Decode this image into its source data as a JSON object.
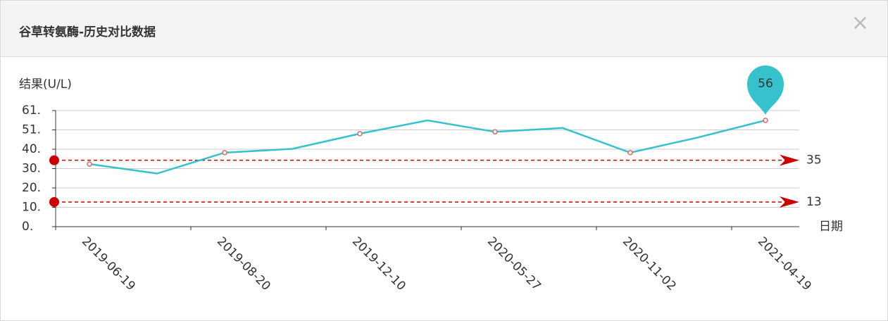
{
  "dialog": {
    "title": "谷草转氨酶-历史对比数据",
    "close": "×"
  },
  "chart_data": {
    "type": "line",
    "y_label": "结果(U/L)",
    "x_label": "日期",
    "categories": [
      "2019-06-19",
      null,
      "2019-08-20",
      null,
      "2019-12-10",
      null,
      "2020-05-27",
      null,
      "2020-11-02",
      null,
      "2021-04-19"
    ],
    "values": [
      33,
      28,
      39,
      41,
      49,
      56,
      50,
      52,
      39,
      47,
      56
    ],
    "color": "#36c2cc",
    "marker_color": "#e06666",
    "ylim": [
      0,
      61.2
    ],
    "yticks": [
      {
        "value": 0,
        "label": "0."
      },
      {
        "value": 10.2,
        "label": "10."
      },
      {
        "value": 20.4,
        "label": "20."
      },
      {
        "value": 30.6,
        "label": "30."
      },
      {
        "value": 40.8,
        "label": "40."
      },
      {
        "value": 51,
        "label": "51."
      },
      {
        "value": 61.2,
        "label": "61."
      }
    ],
    "grid": true,
    "reference_lines": [
      {
        "value": 35,
        "color": "#cc0000"
      },
      {
        "value": 13,
        "color": "#cc0000"
      }
    ],
    "pin_index": 10
  }
}
